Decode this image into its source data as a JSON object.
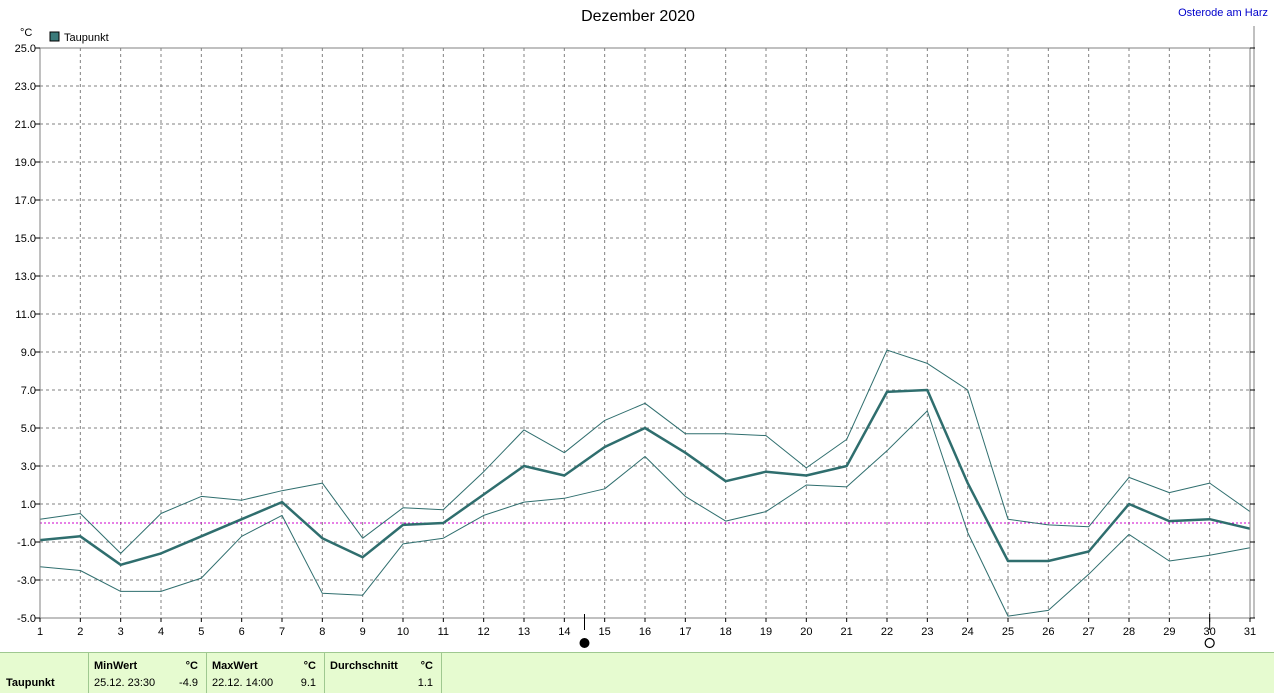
{
  "chart_data": {
    "type": "line",
    "title": "Dezember 2020",
    "station": "Osterode am Harz",
    "ylabel": "°C",
    "ylim": [
      -5.0,
      25.0
    ],
    "yticks": [
      "25.0",
      "23.0",
      "21.0",
      "19.0",
      "17.0",
      "15.0",
      "13.0",
      "11.0",
      "9.0",
      "7.0",
      "5.0",
      "3.0",
      "1.0",
      "-1.0",
      "-3.0",
      "-5.0"
    ],
    "x": [
      1,
      2,
      3,
      4,
      5,
      6,
      7,
      8,
      9,
      10,
      11,
      12,
      13,
      14,
      15,
      16,
      17,
      18,
      19,
      20,
      21,
      22,
      23,
      24,
      25,
      26,
      27,
      28,
      29,
      30,
      31
    ],
    "xticks": [
      "1",
      "2",
      "3",
      "4",
      "5",
      "6",
      "7",
      "8",
      "9",
      "10",
      "11",
      "12",
      "13",
      "14",
      "15",
      "16",
      "17",
      "18",
      "19",
      "20",
      "21",
      "22",
      "23",
      "24",
      "25",
      "26",
      "27",
      "28",
      "29",
      "30",
      "31"
    ],
    "grid": true,
    "legend_position": "top-left",
    "reference_line": 0.0,
    "series": [
      {
        "name": "Taupunkt",
        "role": "mean",
        "values": [
          -0.9,
          -0.7,
          -2.2,
          -1.6,
          -0.7,
          0.2,
          1.1,
          -0.8,
          -1.8,
          -0.1,
          0.0,
          1.5,
          3.0,
          2.5,
          4.0,
          5.0,
          3.7,
          2.2,
          2.7,
          2.5,
          3.0,
          6.9,
          7.0,
          2.1,
          -2.0,
          -2.0,
          -1.5,
          1.0,
          0.1,
          0.2,
          -0.3
        ]
      },
      {
        "role": "max",
        "values": [
          0.2,
          0.5,
          -1.6,
          0.5,
          1.4,
          1.2,
          1.7,
          2.1,
          -0.8,
          0.8,
          0.7,
          2.7,
          4.9,
          3.7,
          5.4,
          6.3,
          4.7,
          4.7,
          4.6,
          2.9,
          4.4,
          9.1,
          8.4,
          7.0,
          0.2,
          -0.1,
          -0.2,
          2.4,
          1.6,
          2.1,
          0.6
        ]
      },
      {
        "role": "min",
        "values": [
          -2.3,
          -2.5,
          -3.6,
          -3.6,
          -2.9,
          -0.7,
          0.4,
          -3.7,
          -3.8,
          -1.1,
          -0.8,
          0.4,
          1.1,
          1.3,
          1.8,
          3.5,
          1.4,
          0.1,
          0.6,
          2.0,
          1.9,
          3.8,
          5.9,
          -0.5,
          -4.9,
          -4.6,
          -2.7,
          -0.6,
          -2.0,
          -1.7,
          -1.3
        ]
      }
    ],
    "moon_markers": [
      {
        "day": 14.5,
        "phase": "new-moon"
      },
      {
        "day": 30,
        "phase": "full-moon"
      }
    ],
    "colors": {
      "line": "#2f6e6e",
      "grid": "#808080",
      "reference": "#cc00cc",
      "legend_box": "#3a7a7a"
    }
  },
  "stats": {
    "row_label": "Taupunkt",
    "min_header": "MinWert",
    "min_unit": "°C",
    "min_time": "25.12.  23:30",
    "min_value": "-4.9",
    "max_header": "MaxWert",
    "max_unit": "°C",
    "max_time": "22.12.  14:00",
    "max_value": "9.1",
    "avg_header": "Durchschnitt",
    "avg_unit": "°C",
    "avg_value": "1.1"
  }
}
